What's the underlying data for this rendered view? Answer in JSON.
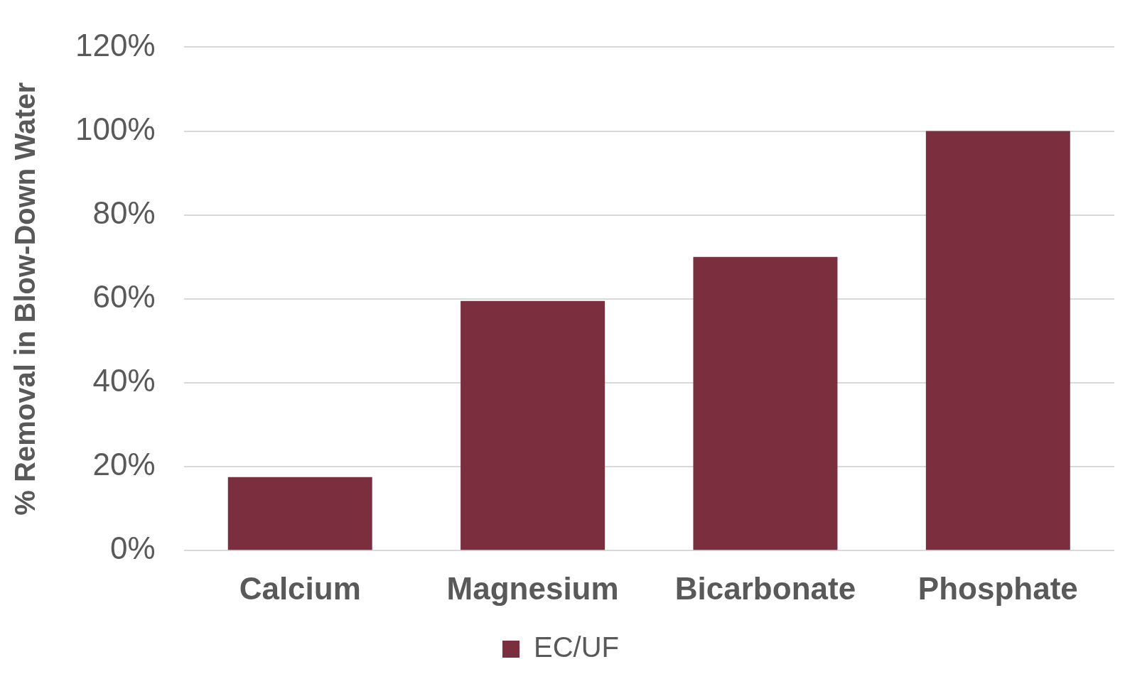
{
  "chart_data": {
    "type": "bar",
    "ylabel": "% Removal in Blow-Down Water",
    "categories": [
      "Calcium",
      "Magnesium",
      "Bicarbonate",
      "Phosphate"
    ],
    "series": [
      {
        "name": "EC/UF",
        "color": "#7a2e3e",
        "values": [
          17.5,
          59.5,
          70,
          100
        ]
      }
    ],
    "ylim": [
      0,
      120
    ],
    "yticks": [
      {
        "value": 0,
        "label": "0%"
      },
      {
        "value": 20,
        "label": "20%"
      },
      {
        "value": 40,
        "label": "40%"
      },
      {
        "value": 60,
        "label": "60%"
      },
      {
        "value": 80,
        "label": "80%"
      },
      {
        "value": 100,
        "label": "100%"
      },
      {
        "value": 120,
        "label": "120%"
      }
    ],
    "grid": "y",
    "legend": "bottom"
  }
}
